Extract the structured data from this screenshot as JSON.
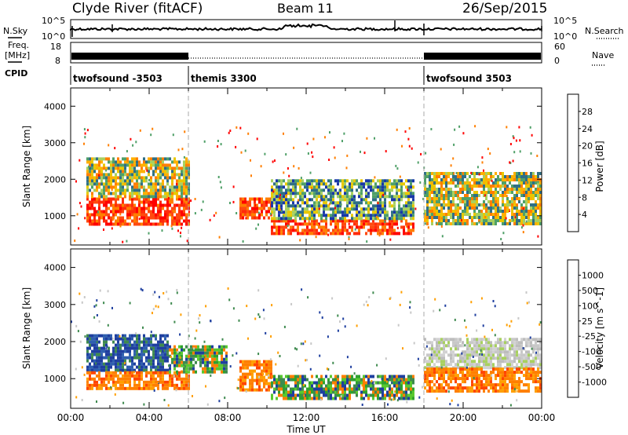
{
  "header": {
    "station": "Clyde River (fitACF)",
    "beam": "Beam 11",
    "date": "26/Sep/2015"
  },
  "side_labels": {
    "nsky": "N.Sky",
    "freq_line1": "Freq.",
    "freq_line2": "[MHz]",
    "cpid": "CPID",
    "nsearch": "N.Search",
    "nave": "Nave"
  },
  "sky_axis": {
    "left_top": "10^5",
    "left_bottom": "10^0",
    "right_top": "10^5",
    "right_bottom": "10^0"
  },
  "freq_axis": {
    "left_top": "18",
    "left_bottom": "8",
    "right_top": "60",
    "right_bottom": "0"
  },
  "cpid_segments": [
    {
      "label": "twofsound -3503",
      "start_h": 0,
      "end_h": 6
    },
    {
      "label": "themis 3300",
      "start_h": 6,
      "end_h": 18
    },
    {
      "label": "twofsound 3503",
      "start_h": 18,
      "end_h": 24
    }
  ],
  "power_colorbar": {
    "label": "Power [dB]",
    "ticks": [
      "28",
      "24",
      "20",
      "16",
      "12",
      "8",
      "4"
    ],
    "colors": [
      "#ff0000",
      "#ff3a0a",
      "#ff7f00",
      "#ffb000",
      "#e8c800",
      "#a8d060",
      "#4fa068",
      "#2f6f85",
      "#1838a8",
      "#0000ff"
    ]
  },
  "velocity_colorbar": {
    "label": "Velocity [m s^-1]",
    "ticks": [
      "1000",
      "500",
      "100",
      "25",
      "-25",
      "-100",
      "-500",
      "-1000"
    ],
    "colors": [
      "#1f3f9f",
      "#2f5faf",
      "#3f8a4f",
      "#2fa02f",
      "#59c92f",
      "#c8c8c8",
      "#c8c8c8",
      "#ff9f00",
      "#ff7f00",
      "#ff4500",
      "#ff0000"
    ]
  },
  "chart_data": [
    {
      "type": "heatmap",
      "title": "Power",
      "ylabel": "Slant Range [km]",
      "xlim": [
        0,
        24
      ],
      "ylim": [
        200,
        4500
      ],
      "yticks": [
        "1000",
        "2000",
        "3000",
        "4000"
      ],
      "bands": [
        {
          "t0": 0.8,
          "t1": 6.0,
          "r0": 800,
          "r1": 1500,
          "level": "high"
        },
        {
          "t0": 0.8,
          "t1": 6.0,
          "r0": 1500,
          "r1": 2600,
          "level": "mid"
        },
        {
          "t0": 8.6,
          "t1": 10.2,
          "r0": 900,
          "r1": 1500,
          "level": "high"
        },
        {
          "t0": 10.2,
          "t1": 17.5,
          "r0": 500,
          "r1": 900,
          "level": "high"
        },
        {
          "t0": 10.2,
          "t1": 17.5,
          "r0": 900,
          "r1": 2000,
          "level": "low"
        },
        {
          "t0": 18.0,
          "t1": 24.0,
          "r0": 800,
          "r1": 2200,
          "level": "mid"
        }
      ]
    },
    {
      "type": "heatmap",
      "title": "Velocity",
      "ylabel": "Slant Range [km]",
      "xlabel": "Time UT",
      "xlim": [
        0,
        24
      ],
      "ylim": [
        200,
        4500
      ],
      "yticks": [
        "1000",
        "2000",
        "3000",
        "4000"
      ],
      "xticks": [
        "00:00",
        "04:00",
        "08:00",
        "12:00",
        "16:00",
        "20:00",
        "00:00"
      ],
      "bands": [
        {
          "t0": 0.8,
          "t1": 5.0,
          "r0": 1200,
          "r1": 2200,
          "level": "positive"
        },
        {
          "t0": 0.8,
          "t1": 6.0,
          "r0": 700,
          "r1": 1200,
          "level": "negative"
        },
        {
          "t0": 5.0,
          "t1": 8.0,
          "r0": 1200,
          "r1": 1900,
          "level": "weak"
        },
        {
          "t0": 8.6,
          "t1": 10.2,
          "r0": 700,
          "r1": 1500,
          "level": "negative"
        },
        {
          "t0": 10.2,
          "t1": 17.5,
          "r0": 500,
          "r1": 1100,
          "level": "weak"
        },
        {
          "t0": 18.0,
          "t1": 24.0,
          "r0": 1300,
          "r1": 2100,
          "level": "zero"
        },
        {
          "t0": 18.0,
          "t1": 24.0,
          "r0": 700,
          "r1": 1300,
          "level": "negative"
        }
      ]
    }
  ],
  "time_axis_label": "Time UT"
}
